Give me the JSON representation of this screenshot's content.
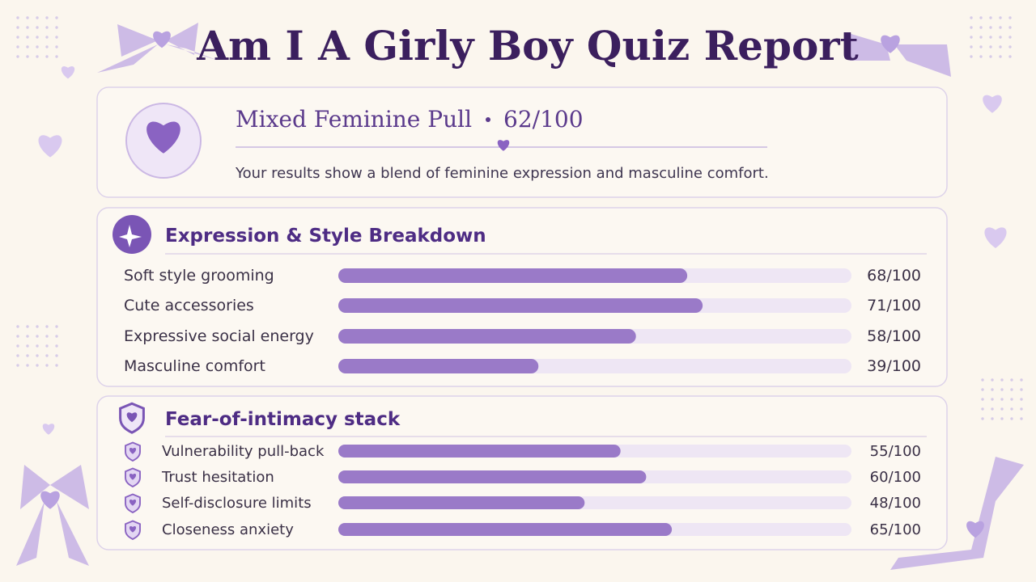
{
  "header": {
    "title": "Am I A Girly Boy Quiz Report"
  },
  "summary": {
    "result": "Mixed Feminine Pull",
    "score": "62/100",
    "description": "Your results show a blend of feminine expression and masculine comfort."
  },
  "sections": [
    {
      "title": "Expression & Style Breakdown",
      "xlim": [
        0,
        100
      ],
      "items": [
        {
          "label": "Soft style grooming",
          "value": 68,
          "value_label": "68/100"
        },
        {
          "label": "Cute accessories",
          "value": 71,
          "value_label": "71/100"
        },
        {
          "label": "Expressive social energy",
          "value": 58,
          "value_label": "58/100"
        },
        {
          "label": "Masculine comfort",
          "value": 39,
          "value_label": "39/100"
        }
      ]
    },
    {
      "title": "Fear-of-intimacy stack",
      "xlim": [
        0,
        100
      ],
      "items": [
        {
          "label": "Vulnerability pull-back",
          "value": 55,
          "value_label": "55/100"
        },
        {
          "label": "Trust hesitation",
          "value": 60,
          "value_label": "60/100"
        },
        {
          "label": "Self-disclosure limits",
          "value": 48,
          "value_label": "48/100"
        },
        {
          "label": "Closeness anxiety",
          "value": 65,
          "value_label": "65/100"
        }
      ]
    }
  ]
}
